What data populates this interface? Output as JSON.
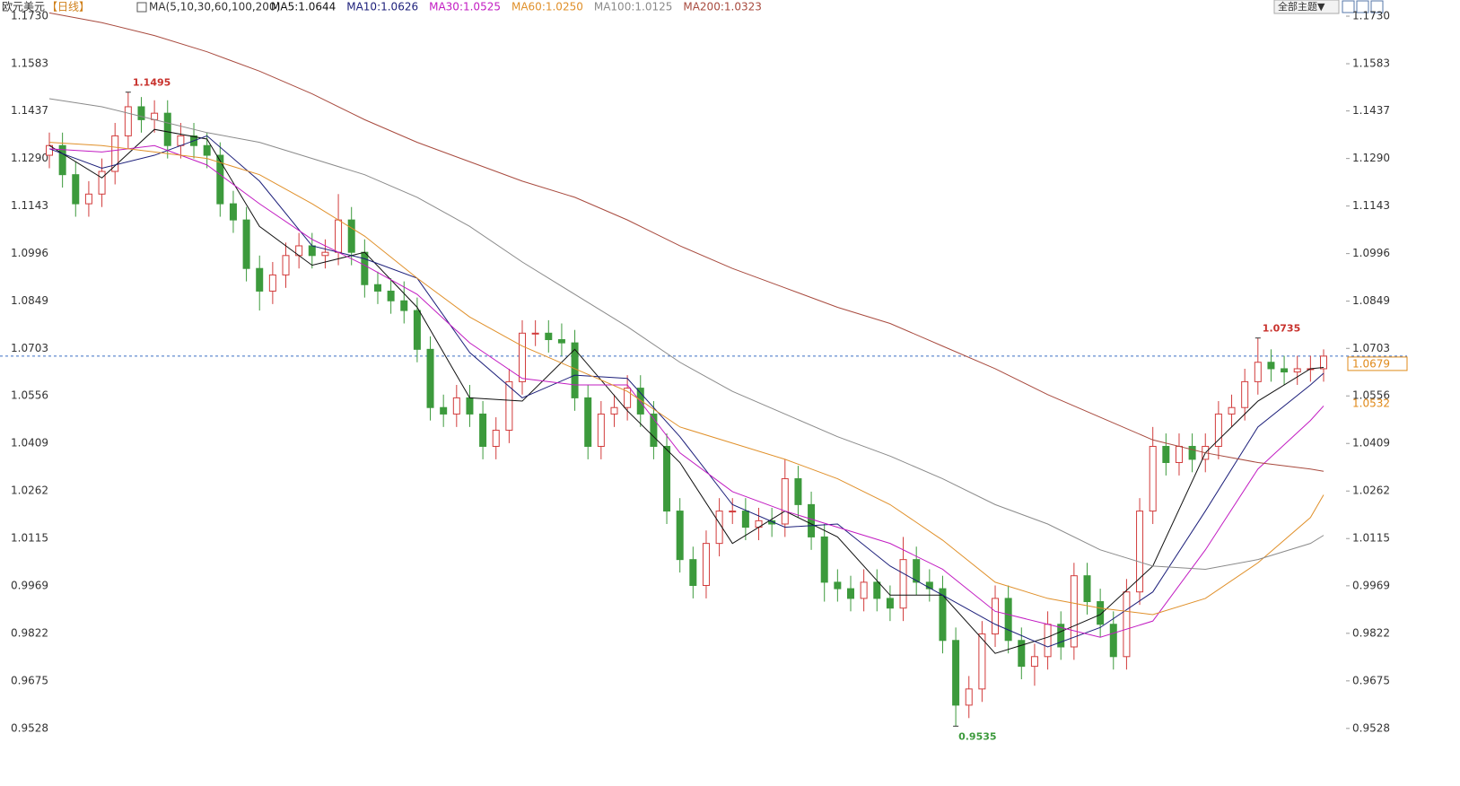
{
  "chart_data": {
    "type": "candlestick",
    "title": "欧元美元",
    "period": "【日线】",
    "indicator": "MA(5,10,30,60,100,200)",
    "toolbar": "全部主题▼",
    "up_color": "#d23c3c",
    "down_color": "#3c9a3c",
    "ylim": [
      0.9436,
      1.178
    ],
    "yticks": [
      {
        "value": 1.173,
        "label": "1.1730"
      },
      1.1583,
      1.1437,
      {
        "value": 1.129,
        "label": "1.1290"
      },
      1.1143,
      1.0996,
      1.0849,
      1.0703,
      1.0556,
      1.0409,
      1.0262,
      1.0115,
      0.9969,
      0.9822,
      0.9675,
      0.9528
    ],
    "open": [
      1.13,
      1.133,
      1.124,
      1.115,
      1.118,
      1.125,
      1.136,
      1.145,
      1.141,
      1.143,
      1.133,
      1.136,
      1.133,
      1.13,
      1.115,
      1.11,
      1.095,
      1.088,
      1.093,
      1.099,
      1.102,
      1.099,
      1.1,
      1.11,
      1.1,
      1.09,
      1.088,
      1.085,
      1.082,
      1.07,
      1.052,
      1.05,
      1.055,
      1.05,
      1.04,
      1.045,
      1.06,
      1.075,
      1.075,
      1.073,
      1.072,
      1.055,
      1.04,
      1.05,
      1.052,
      1.058,
      1.05,
      1.04,
      1.02,
      1.005,
      0.997,
      1.01,
      1.02,
      1.02,
      1.015,
      1.017,
      1.016,
      1.03,
      1.022,
      1.012,
      0.998,
      0.996,
      0.993,
      0.998,
      0.993,
      0.99,
      1.005,
      0.998,
      0.996,
      0.98,
      0.96,
      0.965,
      0.982,
      0.993,
      0.98,
      0.972,
      0.975,
      0.985,
      0.978,
      1.0,
      0.992,
      0.985,
      0.975,
      0.995,
      1.02,
      1.04,
      1.035,
      1.04,
      1.036,
      1.04,
      1.05,
      1.052,
      1.06,
      1.066,
      1.064,
      1.063,
      1.064,
      1.064
    ],
    "high": [
      1.137,
      1.137,
      1.128,
      1.122,
      1.129,
      1.14,
      1.1495,
      1.148,
      1.147,
      1.147,
      1.14,
      1.14,
      1.137,
      1.134,
      1.119,
      1.114,
      1.099,
      1.097,
      1.103,
      1.106,
      1.106,
      1.104,
      1.118,
      1.114,
      1.104,
      1.094,
      1.092,
      1.091,
      1.086,
      1.074,
      1.056,
      1.059,
      1.059,
      1.054,
      1.049,
      1.064,
      1.079,
      1.079,
      1.079,
      1.078,
      1.076,
      1.059,
      1.054,
      1.056,
      1.062,
      1.062,
      1.054,
      1.044,
      1.024,
      1.009,
      1.014,
      1.024,
      1.024,
      1.024,
      1.021,
      1.021,
      1.036,
      1.034,
      1.026,
      1.016,
      1.002,
      1.0,
      1.002,
      1.002,
      0.997,
      1.012,
      1.009,
      1.002,
      1.0,
      0.984,
      0.969,
      0.986,
      0.997,
      0.997,
      0.984,
      0.979,
      0.989,
      0.989,
      1.004,
      1.004,
      0.996,
      0.989,
      0.999,
      1.024,
      1.046,
      1.044,
      1.044,
      1.044,
      1.044,
      1.054,
      1.056,
      1.064,
      1.0735,
      1.07,
      1.068,
      1.068,
      1.068,
      1.07
    ],
    "low": [
      1.126,
      1.12,
      1.111,
      1.111,
      1.114,
      1.121,
      1.132,
      1.137,
      1.137,
      1.129,
      1.129,
      1.129,
      1.126,
      1.111,
      1.106,
      1.091,
      1.082,
      1.084,
      1.089,
      1.095,
      1.095,
      1.095,
      1.096,
      1.096,
      1.086,
      1.084,
      1.081,
      1.078,
      1.066,
      1.048,
      1.046,
      1.046,
      1.046,
      1.036,
      1.036,
      1.041,
      1.056,
      1.071,
      1.069,
      1.068,
      1.051,
      1.036,
      1.036,
      1.046,
      1.048,
      1.046,
      1.036,
      1.016,
      1.001,
      0.993,
      0.993,
      1.006,
      1.016,
      1.011,
      1.011,
      1.012,
      1.012,
      1.018,
      1.008,
      0.992,
      0.992,
      0.989,
      0.989,
      0.989,
      0.986,
      0.986,
      0.994,
      0.992,
      0.976,
      0.9535,
      0.956,
      0.961,
      0.978,
      0.976,
      0.968,
      0.966,
      0.971,
      0.974,
      0.974,
      0.988,
      0.981,
      0.971,
      0.971,
      0.991,
      1.016,
      1.031,
      1.031,
      1.032,
      1.032,
      1.036,
      1.046,
      1.048,
      1.056,
      1.06,
      1.059,
      1.059,
      1.06,
      1.06
    ],
    "close": [
      1.133,
      1.124,
      1.115,
      1.118,
      1.125,
      1.136,
      1.145,
      1.141,
      1.143,
      1.133,
      1.136,
      1.133,
      1.13,
      1.115,
      1.11,
      1.095,
      1.088,
      1.093,
      1.099,
      1.102,
      1.099,
      1.1,
      1.11,
      1.1,
      1.09,
      1.088,
      1.085,
      1.082,
      1.07,
      1.052,
      1.05,
      1.055,
      1.05,
      1.04,
      1.045,
      1.06,
      1.075,
      1.075,
      1.073,
      1.072,
      1.055,
      1.04,
      1.05,
      1.052,
      1.058,
      1.05,
      1.04,
      1.02,
      1.005,
      0.997,
      1.01,
      1.02,
      1.02,
      1.015,
      1.017,
      1.016,
      1.03,
      1.022,
      1.012,
      0.998,
      0.996,
      0.993,
      0.998,
      0.993,
      0.99,
      1.005,
      0.998,
      0.996,
      0.98,
      0.96,
      0.965,
      0.982,
      0.993,
      0.98,
      0.972,
      0.975,
      0.985,
      0.978,
      1.0,
      0.992,
      0.985,
      0.975,
      0.995,
      1.02,
      1.04,
      1.035,
      1.04,
      1.036,
      1.04,
      1.05,
      1.052,
      1.06,
      1.066,
      1.064,
      1.063,
      1.064,
      1.064,
      1.0679
    ],
    "series": [
      {
        "name": "MA5:1.0644",
        "color": "#111111",
        "x": [
          0,
          4,
          8,
          12,
          16,
          20,
          24,
          28,
          32,
          36,
          40,
          44,
          48,
          52,
          56,
          60,
          64,
          68,
          72,
          76,
          80,
          84,
          88,
          92,
          96,
          97
        ],
        "values": [
          1.133,
          1.123,
          1.138,
          1.135,
          1.108,
          1.096,
          1.1,
          1.083,
          1.055,
          1.054,
          1.07,
          1.051,
          1.035,
          1.01,
          1.02,
          1.012,
          0.994,
          0.994,
          0.976,
          0.981,
          0.988,
          1.003,
          1.038,
          1.054,
          1.064,
          1.0644
        ]
      },
      {
        "name": "MA10:1.0626",
        "color": "#1c1f7a",
        "x": [
          0,
          4,
          8,
          12,
          16,
          20,
          24,
          28,
          32,
          36,
          40,
          44,
          48,
          52,
          56,
          60,
          64,
          68,
          72,
          76,
          80,
          84,
          88,
          92,
          96,
          97
        ],
        "values": [
          1.132,
          1.126,
          1.13,
          1.136,
          1.122,
          1.102,
          1.098,
          1.092,
          1.069,
          1.055,
          1.062,
          1.061,
          1.043,
          1.022,
          1.015,
          1.016,
          1.003,
          0.994,
          0.985,
          0.978,
          0.984,
          0.995,
          1.02,
          1.046,
          1.059,
          1.0626
        ]
      },
      {
        "name": "MA30:1.0525",
        "color": "#c21cc2",
        "x": [
          0,
          4,
          8,
          12,
          16,
          20,
          24,
          28,
          32,
          36,
          40,
          44,
          48,
          52,
          56,
          60,
          64,
          68,
          72,
          76,
          80,
          84,
          88,
          92,
          96,
          97
        ],
        "values": [
          1.132,
          1.131,
          1.133,
          1.127,
          1.115,
          1.104,
          1.096,
          1.087,
          1.072,
          1.061,
          1.059,
          1.059,
          1.038,
          1.026,
          1.02,
          1.015,
          1.01,
          1.002,
          0.989,
          0.985,
          0.981,
          0.986,
          1.008,
          1.033,
          1.048,
          1.0525
        ]
      },
      {
        "name": "MA60:1.0250",
        "color": "#e0902a",
        "x": [
          0,
          4,
          8,
          12,
          16,
          20,
          24,
          28,
          32,
          36,
          40,
          44,
          48,
          52,
          56,
          60,
          64,
          68,
          72,
          76,
          80,
          84,
          88,
          92,
          96,
          97
        ],
        "values": [
          1.134,
          1.133,
          1.131,
          1.129,
          1.124,
          1.115,
          1.105,
          1.092,
          1.08,
          1.071,
          1.064,
          1.057,
          1.046,
          1.041,
          1.036,
          1.03,
          1.022,
          1.011,
          0.998,
          0.993,
          0.99,
          0.988,
          0.993,
          1.004,
          1.018,
          1.025
        ]
      },
      {
        "name": "MA100:1.0125",
        "color": "#8a8a8a",
        "x": [
          0,
          4,
          8,
          12,
          16,
          20,
          24,
          28,
          32,
          36,
          40,
          44,
          48,
          52,
          56,
          60,
          64,
          68,
          72,
          76,
          80,
          84,
          88,
          92,
          96,
          97
        ],
        "values": [
          1.1475,
          1.145,
          1.141,
          1.137,
          1.134,
          1.129,
          1.124,
          1.117,
          1.108,
          1.097,
          1.087,
          1.077,
          1.066,
          1.057,
          1.05,
          1.043,
          1.037,
          1.03,
          1.022,
          1.016,
          1.008,
          1.003,
          1.002,
          1.005,
          1.01,
          1.0125
        ]
      },
      {
        "name": "MA200:1.0323",
        "color": "#a84a3e",
        "x": [
          0,
          4,
          8,
          12,
          16,
          20,
          24,
          28,
          32,
          36,
          40,
          44,
          48,
          52,
          56,
          60,
          64,
          68,
          72,
          76,
          80,
          84,
          88,
          92,
          96,
          97
        ],
        "values": [
          1.174,
          1.171,
          1.167,
          1.162,
          1.156,
          1.149,
          1.141,
          1.134,
          1.128,
          1.122,
          1.117,
          1.11,
          1.102,
          1.095,
          1.089,
          1.083,
          1.078,
          1.071,
          1.064,
          1.056,
          1.049,
          1.042,
          1.038,
          1.035,
          1.033,
          1.0323
        ]
      }
    ],
    "high_labels": [
      1.1495,
      1.0735
    ],
    "low_labels": [
      0.9535
    ],
    "last_price": 1.0679,
    "marker_price": 1.0532
  }
}
